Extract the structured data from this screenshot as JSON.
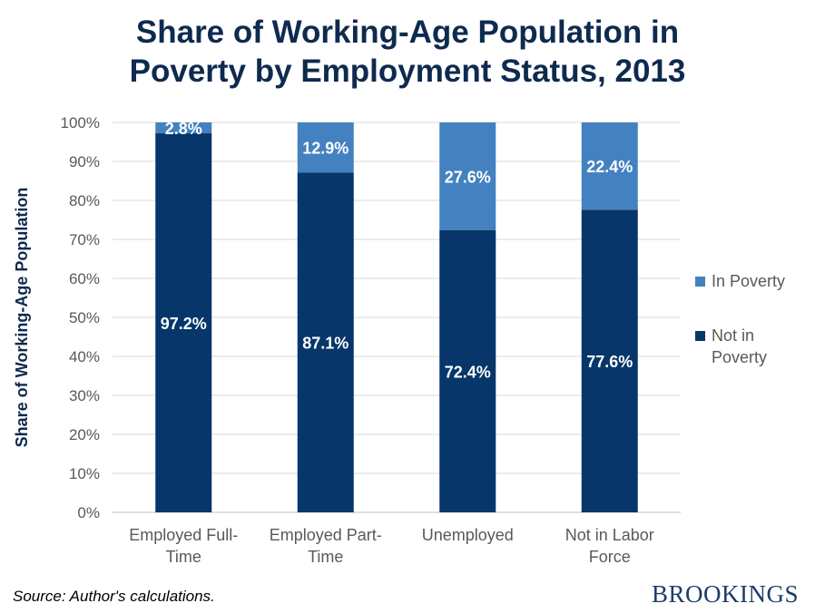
{
  "colors": {
    "title": "#0e2a4f",
    "not_in_poverty": "#06366a",
    "in_poverty": "#4481c0",
    "axis_text": "#595959",
    "gridline": "#d9d9d9",
    "ylabel": "#0e2a4f",
    "brand": "#1d3d6b"
  },
  "chart_data": {
    "type": "bar",
    "stacked": true,
    "title_lines": [
      "Share of Working-Age Population in",
      "Poverty by Employment Status, 2013"
    ],
    "ylabel": "Share of Working-Age Population",
    "xlabel": "",
    "ylim": [
      0,
      100
    ],
    "yticks": [
      0,
      10,
      20,
      30,
      40,
      50,
      60,
      70,
      80,
      90,
      100
    ],
    "ytick_suffix": "%",
    "grid": true,
    "legend_position": "right",
    "categories": [
      [
        "Employed Full-",
        "Time"
      ],
      [
        "Employed Part-",
        "Time"
      ],
      [
        "Unemployed"
      ],
      [
        "Not in Labor",
        "Force"
      ]
    ],
    "series": [
      {
        "name": "Not in Poverty",
        "legend_lines": [
          "Not in",
          "Poverty"
        ],
        "color": "#06366a",
        "values": [
          97.2,
          87.1,
          72.4,
          77.6
        ],
        "labels": [
          "97.2%",
          "87.1%",
          "72.4%",
          "77.6%"
        ]
      },
      {
        "name": "In Poverty",
        "legend_lines": [
          "In Poverty"
        ],
        "color": "#4481c0",
        "values": [
          2.8,
          12.9,
          27.6,
          22.4
        ],
        "labels": [
          "2.8%",
          "12.9%",
          "27.6%",
          "22.4%"
        ]
      }
    ]
  },
  "footer": {
    "source": "Source: Author's calculations.",
    "brand": "BROOKINGS"
  }
}
